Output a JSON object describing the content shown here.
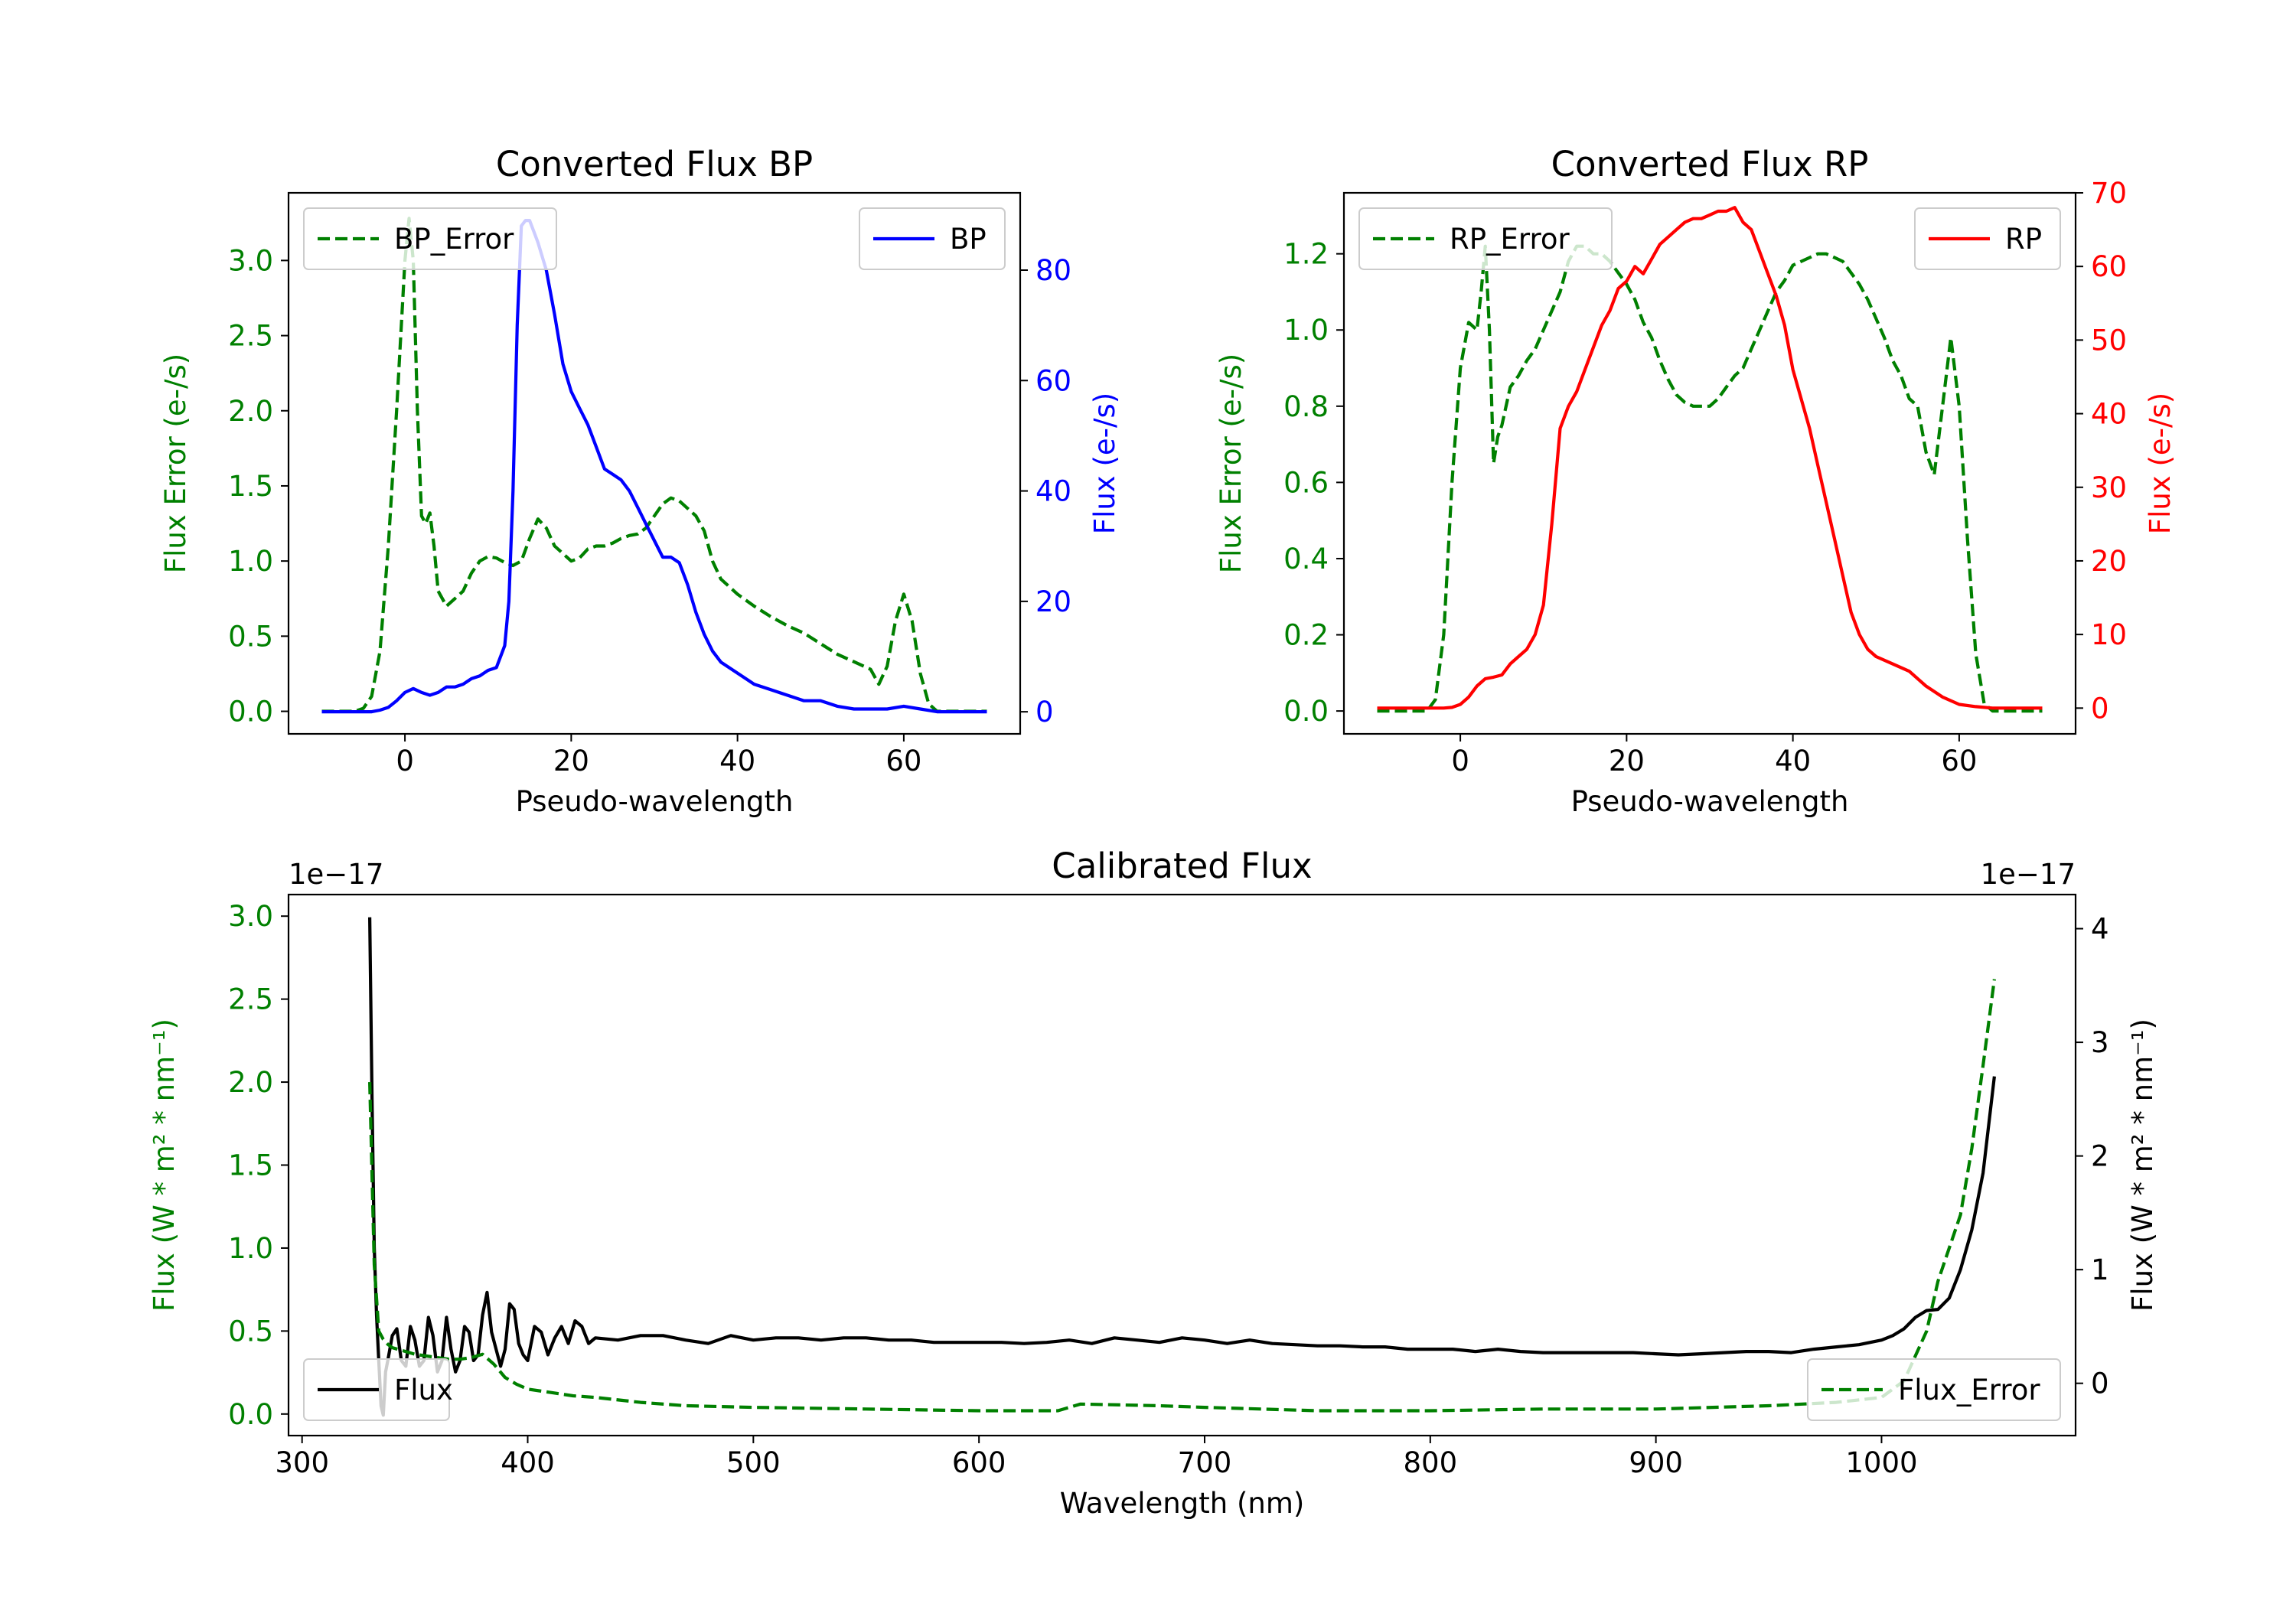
{
  "colors": {
    "green": "#008000",
    "blue": "#0000ff",
    "red": "#ff0000",
    "black": "#000000",
    "axis": "#000000"
  },
  "chart_data": [
    {
      "id": "bp",
      "type": "line",
      "title": "Converted Flux BP",
      "xlabel": "Pseudo-wavelength",
      "xlim": [
        -14,
        74
      ],
      "xticks": [
        0,
        20,
        40,
        60
      ],
      "ylabel_left": "Flux Error (e-/s)",
      "ylim_left": [
        -0.15,
        3.45
      ],
      "yticks_left": [
        "0.0",
        "0.5",
        "1.0",
        "1.5",
        "2.0",
        "2.5",
        "3.0"
      ],
      "ylabel_right": "Flux (e-/s)",
      "ylim_right": [
        -4,
        94
      ],
      "yticks_right": [
        "0",
        "20",
        "40",
        "60",
        "80"
      ],
      "series": [
        {
          "name": "BP_Error",
          "axis": "left",
          "style": "dashed",
          "color": "#008000",
          "legend": "top-left",
          "x": [
            -10,
            -6,
            -5,
            -4,
            -3,
            -2,
            -1,
            0,
            0.5,
            1,
            1.5,
            2,
            2.5,
            3,
            3.5,
            4,
            5,
            6,
            7,
            8,
            9,
            10,
            11,
            12,
            13,
            14,
            15,
            16,
            17,
            18,
            19,
            20,
            21,
            22,
            23,
            24,
            25,
            26,
            27,
            28,
            29,
            30,
            31,
            32,
            33,
            34,
            35,
            36,
            37,
            38,
            40,
            42,
            44,
            46,
            48,
            50,
            52,
            54,
            56,
            57,
            58,
            59,
            60,
            61,
            62,
            63,
            64,
            70
          ],
          "y": [
            0.0,
            0.0,
            0.02,
            0.1,
            0.4,
            1.1,
            2.0,
            3.0,
            3.28,
            3.0,
            2.0,
            1.3,
            1.25,
            1.32,
            1.1,
            0.8,
            0.7,
            0.75,
            0.8,
            0.92,
            1.0,
            1.03,
            1.02,
            0.99,
            0.97,
            1.0,
            1.15,
            1.28,
            1.22,
            1.1,
            1.05,
            1.0,
            1.02,
            1.08,
            1.1,
            1.1,
            1.12,
            1.15,
            1.17,
            1.18,
            1.22,
            1.3,
            1.38,
            1.42,
            1.4,
            1.35,
            1.3,
            1.2,
            1.0,
            0.88,
            0.78,
            0.7,
            0.63,
            0.57,
            0.52,
            0.45,
            0.38,
            0.33,
            0.28,
            0.18,
            0.3,
            0.6,
            0.78,
            0.6,
            0.25,
            0.05,
            0.0,
            0.0
          ]
        },
        {
          "name": "BP",
          "axis": "right",
          "style": "solid",
          "color": "#0000ff",
          "legend": "top-right",
          "x": [
            -10,
            -4,
            -3,
            -2,
            -1,
            0,
            1,
            2,
            3,
            4,
            5,
            6,
            7,
            8,
            9,
            10,
            11,
            12,
            12.5,
            13,
            13.5,
            14,
            14.5,
            15,
            15.5,
            16,
            17,
            18,
            19,
            20,
            21,
            22,
            23,
            24,
            25,
            26,
            27,
            28,
            29,
            30,
            31,
            32,
            33,
            34,
            35,
            36,
            37,
            38,
            40,
            42,
            44,
            46,
            48,
            50,
            52,
            54,
            56,
            58,
            60,
            62,
            64,
            70
          ],
          "y": [
            0,
            0,
            0.3,
            0.8,
            2,
            3.5,
            4.2,
            3.5,
            3,
            3.5,
            4.5,
            4.5,
            5,
            6,
            6.5,
            7.5,
            8,
            12,
            20,
            40,
            70,
            88,
            89,
            89,
            87,
            85,
            80,
            72,
            63,
            58,
            55,
            52,
            48,
            44,
            43,
            42,
            40,
            37,
            34,
            31,
            28,
            28,
            27,
            23,
            18,
            14,
            11,
            9,
            7,
            5,
            4,
            3,
            2,
            2,
            1,
            0.5,
            0.5,
            0.5,
            1,
            0.5,
            0,
            0
          ]
        }
      ]
    },
    {
      "id": "rp",
      "type": "line",
      "title": "Converted Flux RP",
      "xlabel": "Pseudo-wavelength",
      "xlim": [
        -14,
        74
      ],
      "xticks": [
        0,
        20,
        40,
        60
      ],
      "ylabel_left": "Flux Error (e-/s)",
      "ylim_left": [
        -0.06,
        1.36
      ],
      "yticks_left": [
        "0.0",
        "0.2",
        "0.4",
        "0.6",
        "0.8",
        "1.0",
        "1.2"
      ],
      "ylabel_right": "Flux (e-/s)",
      "ylim_right": [
        -3.5,
        70
      ],
      "yticks_right": [
        "0",
        "10",
        "20",
        "30",
        "40",
        "50",
        "60",
        "70"
      ],
      "series": [
        {
          "name": "RP_Error",
          "axis": "left",
          "style": "dashed",
          "color": "#008000",
          "legend": "top-left",
          "x": [
            -10,
            -4,
            -3,
            -2,
            -1,
            0,
            1,
            2,
            2.5,
            3,
            3.5,
            4,
            4.5,
            5,
            6,
            7,
            8,
            9,
            10,
            11,
            12,
            13,
            14,
            15,
            16,
            17,
            18,
            19,
            20,
            21,
            22,
            23,
            24,
            25,
            26,
            27,
            28,
            29,
            30,
            31,
            32,
            33,
            34,
            35,
            36,
            37,
            38,
            39,
            40,
            41,
            42,
            43,
            44,
            45,
            46,
            47,
            48,
            49,
            50,
            51,
            52,
            53,
            54,
            55,
            56,
            57,
            58,
            59,
            60,
            61,
            62,
            63,
            64,
            70
          ],
          "y": [
            0.0,
            0.0,
            0.03,
            0.2,
            0.6,
            0.9,
            1.02,
            1.0,
            1.1,
            1.22,
            1.0,
            0.65,
            0.72,
            0.75,
            0.85,
            0.88,
            0.92,
            0.95,
            1.0,
            1.05,
            1.1,
            1.18,
            1.22,
            1.22,
            1.2,
            1.2,
            1.18,
            1.15,
            1.12,
            1.08,
            1.02,
            0.98,
            0.92,
            0.87,
            0.83,
            0.81,
            0.8,
            0.8,
            0.8,
            0.82,
            0.85,
            0.88,
            0.9,
            0.95,
            1.0,
            1.05,
            1.1,
            1.13,
            1.17,
            1.18,
            1.19,
            1.2,
            1.2,
            1.19,
            1.18,
            1.15,
            1.12,
            1.08,
            1.03,
            0.98,
            0.92,
            0.88,
            0.82,
            0.8,
            0.68,
            0.62,
            0.8,
            0.98,
            0.8,
            0.45,
            0.15,
            0.02,
            0.0,
            0.0
          ]
        },
        {
          "name": "RP",
          "axis": "right",
          "style": "solid",
          "color": "#ff0000",
          "legend": "top-right",
          "x": [
            -10,
            -2,
            -1,
            0,
            1,
            2,
            3,
            4,
            5,
            6,
            7,
            8,
            9,
            10,
            11,
            12,
            13,
            14,
            15,
            16,
            17,
            18,
            19,
            20,
            21,
            22,
            23,
            24,
            25,
            26,
            27,
            28,
            29,
            30,
            31,
            32,
            33,
            34,
            35,
            36,
            37,
            38,
            39,
            40,
            41,
            42,
            43,
            44,
            45,
            46,
            47,
            48,
            49,
            50,
            52,
            54,
            56,
            58,
            60,
            62,
            64,
            70
          ],
          "y": [
            0,
            0,
            0.1,
            0.5,
            1.5,
            3,
            4,
            4.2,
            4.5,
            6,
            7,
            8,
            10,
            14,
            25,
            38,
            41,
            43,
            46,
            49,
            52,
            54,
            57,
            58,
            60,
            59,
            61,
            63,
            64,
            65,
            66,
            66.5,
            66.5,
            67,
            67.5,
            67.5,
            68,
            66,
            65,
            62,
            59,
            56,
            52,
            46,
            42,
            38,
            33,
            28,
            23,
            18,
            13,
            10,
            8,
            7,
            6,
            5,
            3,
            1.5,
            0.5,
            0.2,
            0,
            0
          ]
        }
      ]
    },
    {
      "id": "cal",
      "type": "line",
      "title": "Calibrated Flux",
      "xlabel": "Wavelength (nm)",
      "xlim": [
        294,
        1086
      ],
      "xticks": [
        300,
        400,
        500,
        600,
        700,
        800,
        900,
        1000
      ],
      "ylabel_left": "Flux (W * m² * nm⁻¹)",
      "ylim_left": [
        -0.13,
        3.13
      ],
      "yticks_left": [
        "0.0",
        "0.5",
        "1.0",
        "1.5",
        "2.0",
        "2.5",
        "3.0"
      ],
      "offset_left": "1e−17",
      "ylabel_right": "Flux (W * m² * nm⁻¹)",
      "ylim_right": [
        -0.46,
        4.3
      ],
      "yticks_right": [
        "0",
        "1",
        "2",
        "3",
        "4"
      ],
      "offset_right": "1e−17",
      "series": [
        {
          "name": "Flux",
          "axis": "right",
          "style": "solid",
          "color": "#000000",
          "legend": "bottom-left",
          "x": [
            330,
            331,
            332,
            333,
            334,
            335,
            336,
            337,
            338,
            340,
            342,
            344,
            346,
            348,
            350,
            352,
            354,
            356,
            358,
            360,
            362,
            364,
            366,
            368,
            370,
            372,
            374,
            376,
            378,
            380,
            382,
            384,
            386,
            388,
            390,
            392,
            394,
            396,
            398,
            400,
            403,
            406,
            409,
            412,
            415,
            418,
            421,
            424,
            427,
            430,
            440,
            450,
            460,
            470,
            480,
            490,
            500,
            510,
            520,
            530,
            540,
            550,
            560,
            570,
            580,
            590,
            600,
            610,
            620,
            630,
            640,
            650,
            660,
            670,
            680,
            690,
            700,
            710,
            720,
            730,
            740,
            750,
            760,
            770,
            780,
            790,
            800,
            810,
            820,
            830,
            840,
            850,
            860,
            870,
            880,
            890,
            900,
            910,
            920,
            930,
            940,
            950,
            960,
            970,
            980,
            990,
            1000,
            1005,
            1010,
            1015,
            1020,
            1025,
            1030,
            1035,
            1040,
            1045,
            1050
          ],
          "y": [
            4.1,
            2.5,
            1.2,
            0.6,
            0.2,
            -0.2,
            -0.28,
            0.1,
            0.2,
            0.42,
            0.48,
            0.2,
            0.15,
            0.5,
            0.38,
            0.15,
            0.2,
            0.58,
            0.42,
            0.1,
            0.2,
            0.58,
            0.3,
            0.1,
            0.2,
            0.5,
            0.45,
            0.2,
            0.25,
            0.6,
            0.8,
            0.45,
            0.3,
            0.15,
            0.3,
            0.7,
            0.65,
            0.35,
            0.25,
            0.2,
            0.5,
            0.45,
            0.25,
            0.4,
            0.5,
            0.35,
            0.55,
            0.5,
            0.35,
            0.4,
            0.38,
            0.42,
            0.42,
            0.38,
            0.35,
            0.42,
            0.38,
            0.4,
            0.4,
            0.38,
            0.4,
            0.4,
            0.38,
            0.38,
            0.36,
            0.36,
            0.36,
            0.36,
            0.35,
            0.36,
            0.38,
            0.35,
            0.4,
            0.38,
            0.36,
            0.4,
            0.38,
            0.35,
            0.38,
            0.35,
            0.34,
            0.33,
            0.33,
            0.32,
            0.32,
            0.3,
            0.3,
            0.3,
            0.28,
            0.3,
            0.28,
            0.27,
            0.27,
            0.27,
            0.27,
            0.27,
            0.26,
            0.25,
            0.26,
            0.27,
            0.28,
            0.28,
            0.27,
            0.3,
            0.32,
            0.34,
            0.38,
            0.42,
            0.48,
            0.58,
            0.64,
            0.65,
            0.75,
            1.0,
            1.35,
            1.85,
            2.7
          ]
        },
        {
          "name": "Flux_Error",
          "axis": "left",
          "style": "dashed",
          "color": "#008000",
          "legend": "bottom-right",
          "x": [
            330,
            332,
            334,
            336,
            338,
            340,
            345,
            350,
            355,
            360,
            365,
            370,
            375,
            380,
            385,
            390,
            395,
            400,
            410,
            420,
            430,
            450,
            470,
            500,
            550,
            600,
            620,
            635,
            645,
            680,
            700,
            750,
            800,
            850,
            900,
            950,
            980,
            1000,
            1010,
            1020,
            1025,
            1030,
            1035,
            1040,
            1045,
            1050
          ],
          "y": [
            2.0,
            0.9,
            0.5,
            0.45,
            0.42,
            0.4,
            0.38,
            0.36,
            0.35,
            0.34,
            0.33,
            0.33,
            0.34,
            0.36,
            0.3,
            0.22,
            0.18,
            0.15,
            0.13,
            0.11,
            0.1,
            0.07,
            0.05,
            0.04,
            0.03,
            0.02,
            0.02,
            0.02,
            0.06,
            0.05,
            0.04,
            0.02,
            0.02,
            0.03,
            0.03,
            0.05,
            0.07,
            0.1,
            0.2,
            0.5,
            0.8,
            1.0,
            1.2,
            1.6,
            2.1,
            2.62
          ]
        }
      ]
    }
  ]
}
